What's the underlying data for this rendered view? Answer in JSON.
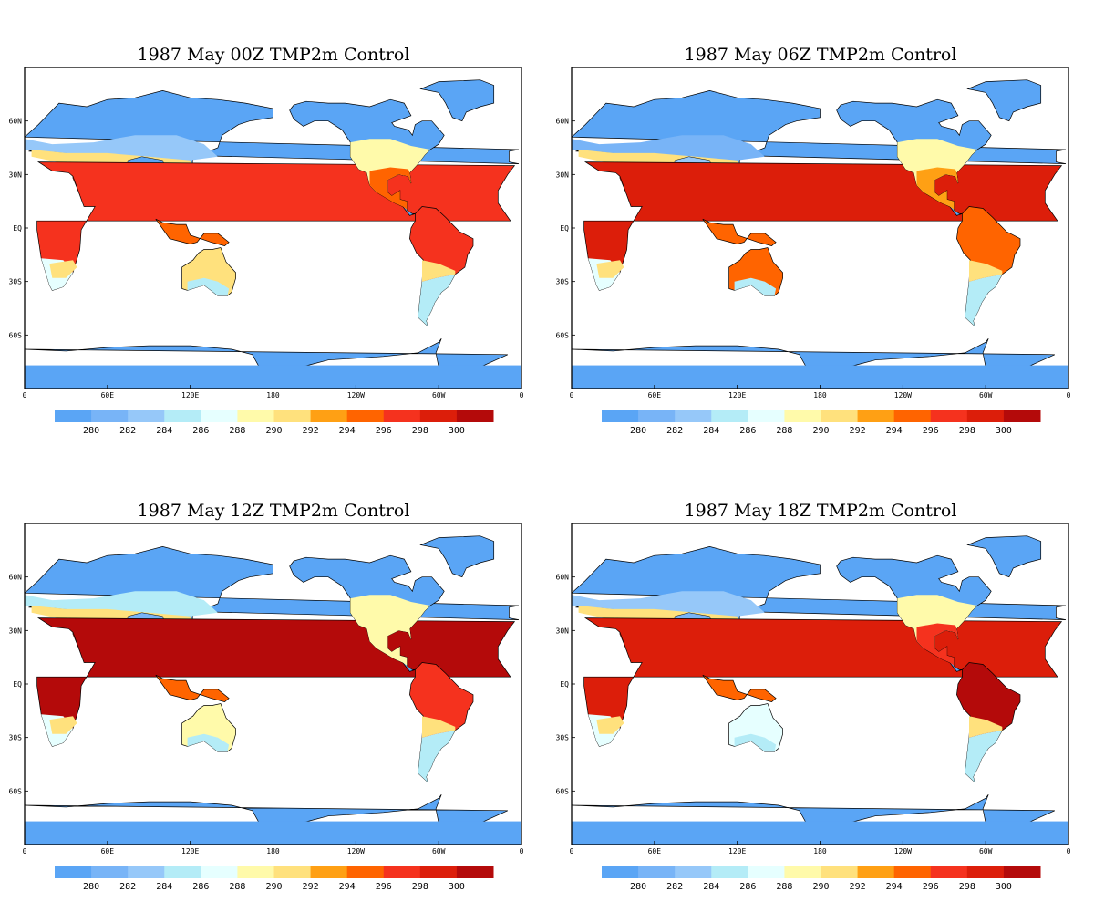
{
  "colorbar": {
    "colors": [
      "#5aa5f5",
      "#78b4f7",
      "#96c8f9",
      "#b4ecf7",
      "#e6ffff",
      "#fffaaa",
      "#ffe17d",
      "#ffa014",
      "#ff6400",
      "#f5321e",
      "#dc1e0a",
      "#b40a0a"
    ],
    "labels": [
      "280",
      "282",
      "284",
      "286",
      "288",
      "290",
      "292",
      "294",
      "296",
      "298",
      "300"
    ]
  },
  "axes": {
    "x_ticks": [
      "0",
      "60E",
      "120E",
      "180",
      "120W",
      "60W",
      "0"
    ],
    "y_ticks": [
      "60N",
      "30N",
      "EQ",
      "30S",
      "60S"
    ]
  },
  "land_colors": {
    "ice": "#5aa5f5",
    "ocean": "#ffffff",
    "coast": "#000000"
  },
  "panels": [
    {
      "title": "1987 May  00Z TMP2m Control",
      "hour": 0
    },
    {
      "title": "1987  May 06Z TMP2m Control",
      "hour": 6
    },
    {
      "title": "1987  May 12Z TMP2m Control",
      "hour": 12
    },
    {
      "title": "1987  May 18Z TMP2m Control",
      "hour": 18
    }
  ]
}
